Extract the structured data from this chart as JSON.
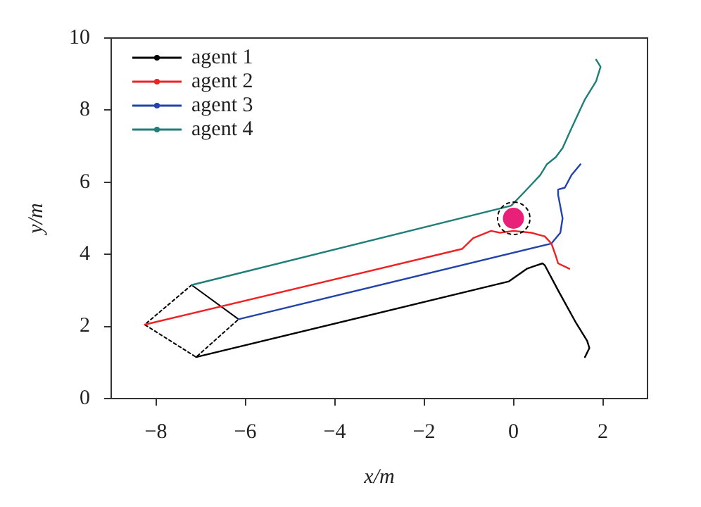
{
  "chart_data": {
    "type": "line",
    "xlabel": "x/m",
    "ylabel": "y/m",
    "xlim": [
      -9,
      3
    ],
    "xticks": [
      -8,
      -6,
      -4,
      -2,
      0,
      2
    ],
    "ylim": [
      0,
      10
    ],
    "yticks": [
      0,
      2,
      4,
      6,
      8,
      10
    ],
    "grid": false,
    "legend": "top left",
    "series": [
      {
        "name": "agent 1",
        "color": "#000000",
        "x": [
          -7.1,
          -0.1,
          0.3,
          0.65,
          0.7,
          1.0,
          1.4,
          1.65,
          1.7,
          1.6
        ],
        "values": [
          1.15,
          3.25,
          3.6,
          3.75,
          3.7,
          3.0,
          2.1,
          1.6,
          1.4,
          1.15
        ]
      },
      {
        "name": "agent 2",
        "color": "#ee2222",
        "x": [
          -8.25,
          -1.15,
          -0.9,
          -0.5,
          -0.3,
          0,
          0.4,
          0.7,
          0.85,
          0.95,
          1.0,
          1.25
        ],
        "values": [
          2.05,
          4.15,
          4.45,
          4.65,
          4.6,
          4.65,
          4.6,
          4.5,
          4.3,
          3.95,
          3.75,
          3.6
        ]
      },
      {
        "name": "agent 3",
        "color": "#2244aa",
        "x": [
          -6.15,
          0.85,
          1.05,
          1.1,
          1.0,
          1.0,
          1.15,
          1.3,
          1.5
        ],
        "values": [
          2.2,
          4.3,
          4.6,
          5.0,
          5.65,
          5.8,
          5.85,
          6.2,
          6.5
        ]
      },
      {
        "name": "agent 4",
        "color": "#1f7f78",
        "x": [
          -7.2,
          -0.05,
          0.3,
          0.6,
          0.75,
          0.95,
          1.1,
          1.3,
          1.6,
          1.85,
          1.95,
          1.85
        ],
        "values": [
          3.15,
          5.35,
          5.8,
          6.2,
          6.5,
          6.7,
          6.95,
          7.5,
          8.3,
          8.8,
          9.2,
          9.4
        ]
      },
      {
        "type": "line",
        "color": "#000000",
        "line_style": "dotted",
        "x": [
          -7.2,
          -8.25,
          -7.1,
          -6.15
        ],
        "values": [
          3.15,
          2.05,
          1.15,
          2.2
        ]
      },
      {
        "type": "line",
        "color": "#000000",
        "line_style": "solid",
        "x": [
          -7.2,
          -6.15
        ],
        "values": [
          3.15,
          2.2
        ]
      },
      {
        "type": "scatter",
        "color": "#e8207a",
        "marker": "circle",
        "x": [
          0
        ],
        "values": [
          5
        ]
      }
    ]
  }
}
